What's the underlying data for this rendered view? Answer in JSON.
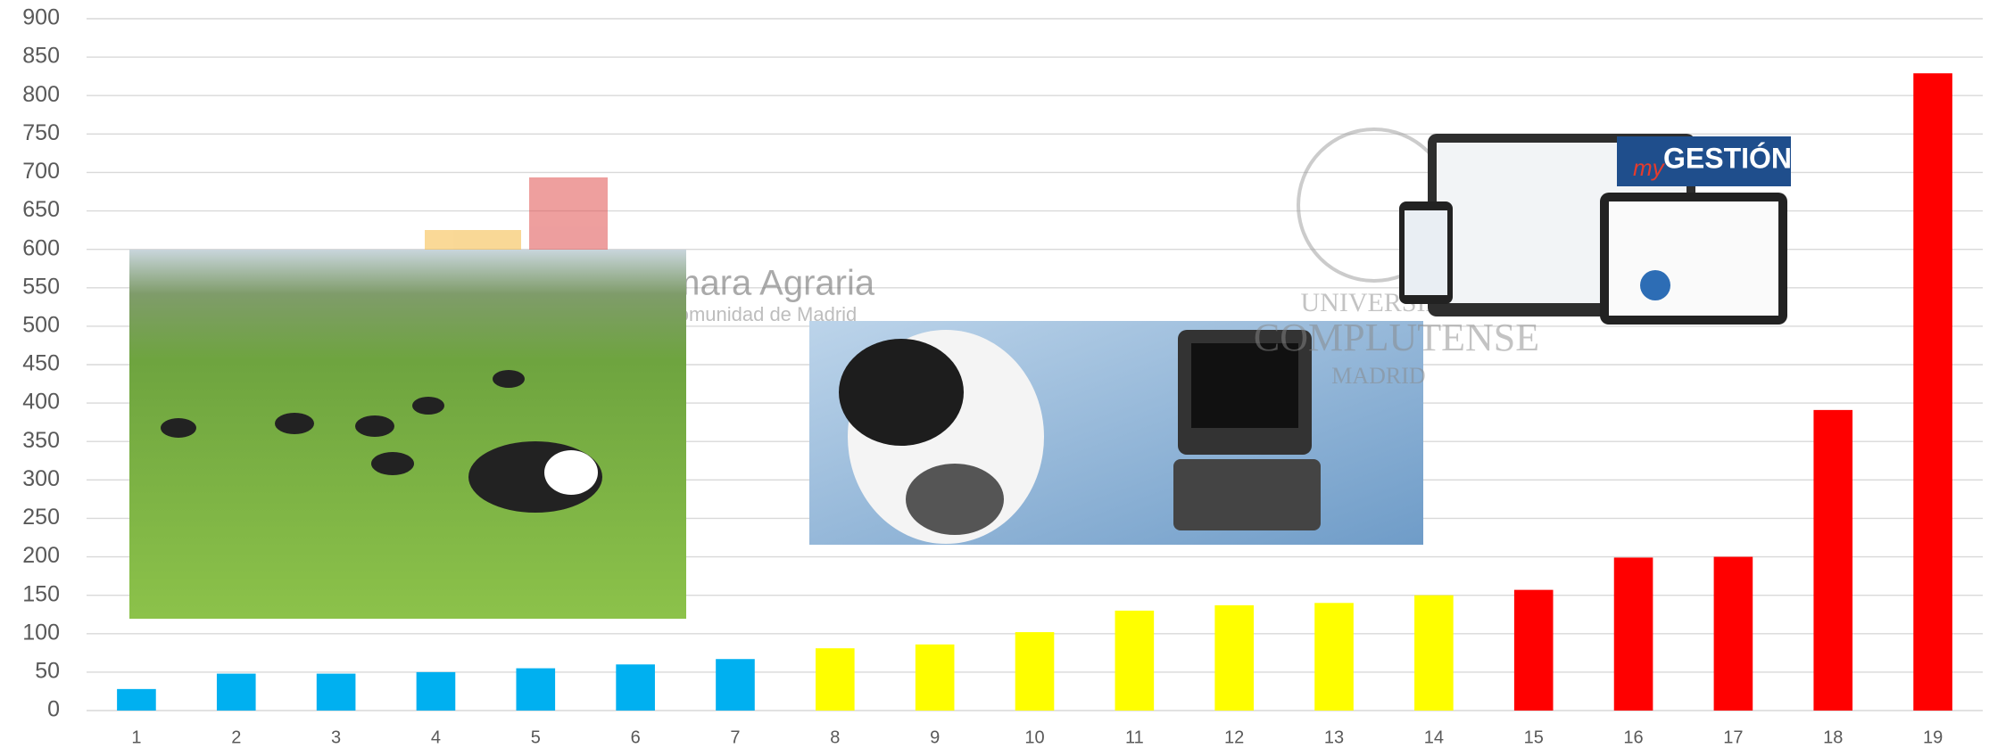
{
  "chart_data": {
    "type": "bar",
    "categories": [
      "1",
      "2",
      "3",
      "4",
      "5",
      "6",
      "7",
      "8",
      "9",
      "10",
      "11",
      "12",
      "13",
      "14",
      "15",
      "16",
      "17",
      "18",
      "19"
    ],
    "values": [
      28,
      48,
      48,
      50,
      55,
      60,
      67,
      81,
      86,
      102,
      130,
      137,
      140,
      150,
      157,
      199,
      200,
      391,
      829
    ],
    "colors": [
      "#00b0f0",
      "#00b0f0",
      "#00b0f0",
      "#00b0f0",
      "#00b0f0",
      "#00b0f0",
      "#00b0f0",
      "#ffff00",
      "#ffff00",
      "#ffff00",
      "#ffff00",
      "#ffff00",
      "#ffff00",
      "#ffff00",
      "#ff0000",
      "#ff0000",
      "#ff0000",
      "#ff0000",
      "#ff0000"
    ],
    "ylim": [
      0,
      900
    ],
    "yticks": [
      0,
      50,
      100,
      150,
      200,
      250,
      300,
      350,
      400,
      450,
      500,
      550,
      600,
      650,
      700,
      750,
      800,
      850,
      900
    ],
    "grid": true
  },
  "overlays": {
    "camara": [
      "Cámara Agraria",
      "de la Comunidad de Madrid"
    ],
    "university": [
      "UNIVERSIDAD",
      "COMPLUTENSE",
      "MADRID"
    ],
    "software": [
      "my",
      "GESTIÓN"
    ]
  }
}
